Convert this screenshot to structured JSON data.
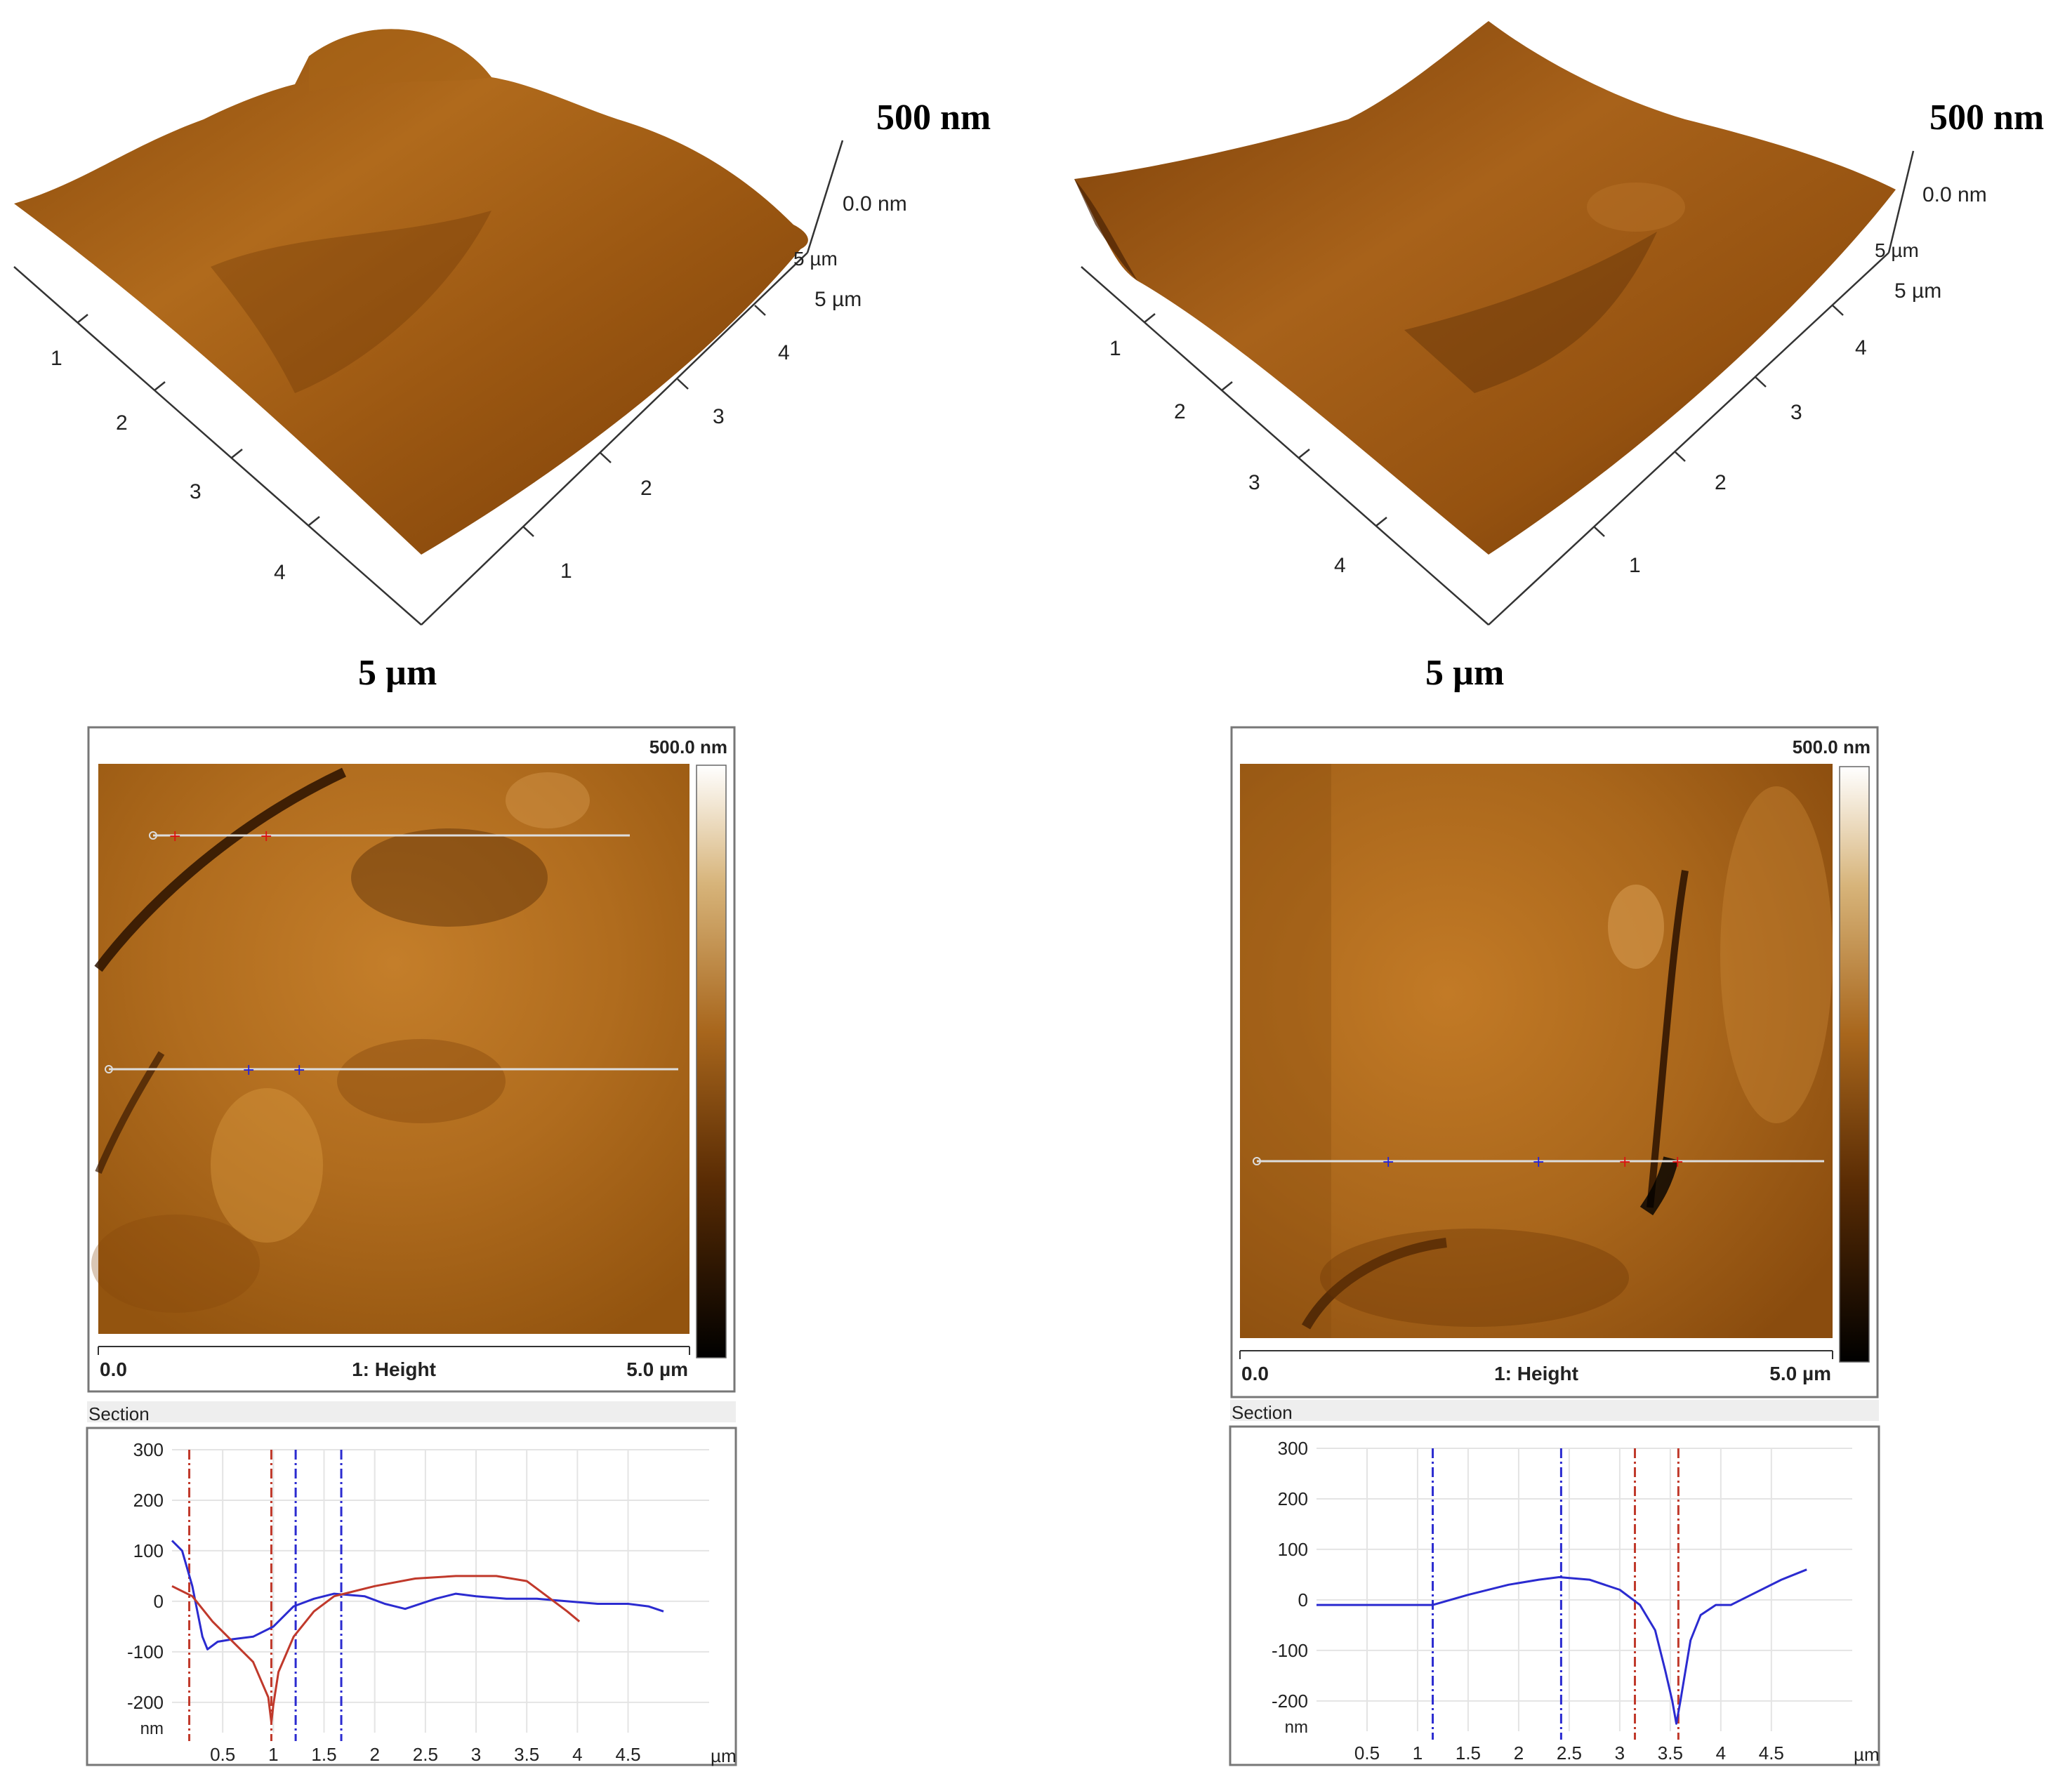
{
  "panels": [
    {
      "id": "left",
      "surface3d": {
        "z_label": "500 nm",
        "z_zero": "0.0 nm",
        "y_end": "5 µm",
        "x_end": "5 µm",
        "bottom_label": "5 µm",
        "left_ticks": [
          "1",
          "2",
          "3",
          "4"
        ],
        "right_ticks": [
          "1",
          "2",
          "3",
          "4"
        ]
      },
      "height_map": {
        "scale_max": "500.0 nm",
        "x_start": "0.0",
        "title": "1: Height",
        "x_end": "5.0 µm"
      },
      "section": {
        "label": "Section"
      }
    },
    {
      "id": "right",
      "surface3d": {
        "z_label": "500 nm",
        "z_zero": "0.0 nm",
        "y_end": "5 µm",
        "x_end": "5 µm",
        "bottom_label": "5 µm",
        "left_ticks": [
          "1",
          "2",
          "3",
          "4"
        ],
        "right_ticks": [
          "1",
          "2",
          "3",
          "4"
        ]
      },
      "height_map": {
        "scale_max": "500.0 nm",
        "x_start": "0.0",
        "title": "1: Height",
        "x_end": "5.0 µm"
      },
      "section": {
        "label": "Section"
      }
    }
  ],
  "chart_data": [
    {
      "type": "line",
      "title": "Section",
      "ylabel": "nm",
      "xlabel": "µm",
      "xlim": [
        0,
        5.3
      ],
      "ylim": [
        -260,
        300
      ],
      "x_ticks": [
        "0.5",
        "1",
        "1.5",
        "2",
        "2.5",
        "3",
        "3.5",
        "4",
        "4.5"
      ],
      "y_ticks": [
        "300",
        "200",
        "100",
        "0",
        "-100",
        "-200"
      ],
      "series": [
        {
          "name": "blue",
          "color": "#2b2bd0",
          "x": [
            0.0,
            0.1,
            0.2,
            0.3,
            0.35,
            0.45,
            0.6,
            0.8,
            1.0,
            1.2,
            1.4,
            1.6,
            1.9,
            2.1,
            2.3,
            2.6,
            2.8,
            3.0,
            3.3,
            3.6,
            3.9,
            4.2,
            4.5,
            4.7,
            4.85
          ],
          "y": [
            120,
            100,
            30,
            -70,
            -95,
            -80,
            -75,
            -70,
            -50,
            -10,
            5,
            15,
            10,
            -5,
            -15,
            5,
            15,
            10,
            5,
            5,
            0,
            -5,
            -5,
            -10,
            -20
          ]
        },
        {
          "name": "red",
          "color": "#c0392b",
          "x": [
            0.0,
            0.2,
            0.4,
            0.6,
            0.8,
            0.95,
            0.98,
            1.0,
            1.05,
            1.2,
            1.4,
            1.6,
            2.0,
            2.4,
            2.8,
            3.2,
            3.5,
            3.7,
            3.9,
            4.02
          ],
          "y": [
            30,
            10,
            -40,
            -80,
            -120,
            -190,
            -240,
            -205,
            -140,
            -70,
            -20,
            10,
            30,
            45,
            50,
            50,
            40,
            10,
            -20,
            -40
          ]
        }
      ],
      "cursors": [
        {
          "x": 0.17,
          "color": "#c0392b"
        },
        {
          "x": 0.98,
          "color": "#c0392b"
        },
        {
          "x": 1.22,
          "color": "#2b2bd0"
        },
        {
          "x": 1.67,
          "color": "#2b2bd0"
        }
      ]
    },
    {
      "type": "line",
      "title": "Section",
      "ylabel": "nm",
      "xlabel": "µm",
      "xlim": [
        0,
        5.3
      ],
      "ylim": [
        -260,
        300
      ],
      "x_ticks": [
        "0.5",
        "1",
        "1.5",
        "2",
        "2.5",
        "3",
        "3.5",
        "4",
        "4.5"
      ],
      "y_ticks": [
        "300",
        "200",
        "100",
        "0",
        "-100",
        "-200"
      ],
      "series": [
        {
          "name": "blue",
          "color": "#2b2bd0",
          "x": [
            0.0,
            0.4,
            0.8,
            1.15,
            1.5,
            1.9,
            2.2,
            2.4,
            2.7,
            3.0,
            3.2,
            3.35,
            3.45,
            3.52,
            3.56,
            3.6,
            3.7,
            3.8,
            3.95,
            4.1,
            4.3,
            4.6,
            4.85
          ],
          "y": [
            -10,
            -10,
            -10,
            -10,
            10,
            30,
            40,
            45,
            40,
            20,
            -10,
            -60,
            -140,
            -200,
            -245,
            -200,
            -80,
            -30,
            -10,
            -10,
            10,
            40,
            60
          ]
        }
      ],
      "cursors": [
        {
          "x": 1.15,
          "color": "#2b2bd0"
        },
        {
          "x": 2.42,
          "color": "#2b2bd0"
        },
        {
          "x": 3.15,
          "color": "#c0392b"
        },
        {
          "x": 3.58,
          "color": "#c0392b"
        }
      ]
    }
  ]
}
